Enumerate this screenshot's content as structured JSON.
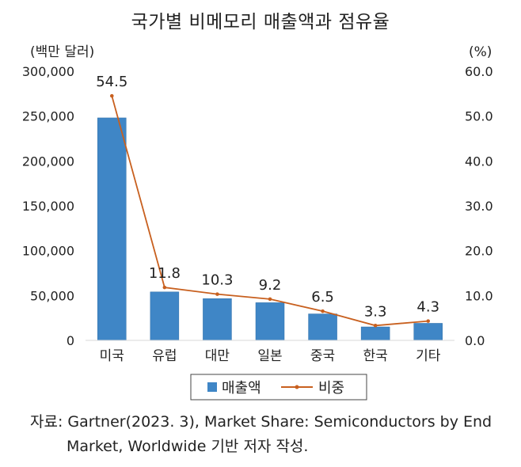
{
  "chart_data": {
    "type": "bar",
    "title": "국가별 비메모리 매출액과 점유율",
    "categories": [
      "미국",
      "유럽",
      "대만",
      "일본",
      "중국",
      "한국",
      "기타"
    ],
    "series": [
      {
        "name": "매출액",
        "type": "bar",
        "axis": "left",
        "values": [
          248000,
          54000,
          46500,
          42000,
          29500,
          15000,
          19000
        ]
      },
      {
        "name": "비중",
        "type": "line",
        "axis": "right",
        "values": [
          54.5,
          11.8,
          10.3,
          9.2,
          6.5,
          3.3,
          4.3
        ],
        "labels": [
          "54.5",
          "11.8",
          "10.3",
          "9.2",
          "6.5",
          "3.3",
          "4.3"
        ]
      }
    ],
    "left_axis": {
      "unit_label": "(백만 달러)",
      "range": [
        0,
        300000
      ],
      "ticks": [
        "0",
        "50,000",
        "100,000",
        "150,000",
        "200,000",
        "250,000",
        "300,000"
      ]
    },
    "right_axis": {
      "unit_label": "(%)",
      "range": [
        0,
        60
      ],
      "ticks": [
        "0.0",
        "10.0",
        "20.0",
        "30.0",
        "40.0",
        "50.0",
        "60.0"
      ]
    },
    "grid": false,
    "legend_position": "bottom",
    "colors": {
      "bar": "#3f86c6",
      "bar_edge": "#2f6fa8",
      "line": "#c8601f",
      "text": "#222222"
    }
  },
  "source": {
    "line1": "자료: Gartner(2023. 3), Market Share: Semiconductors by End",
    "line2": "Market, Worldwide 기반 저자 작성."
  }
}
